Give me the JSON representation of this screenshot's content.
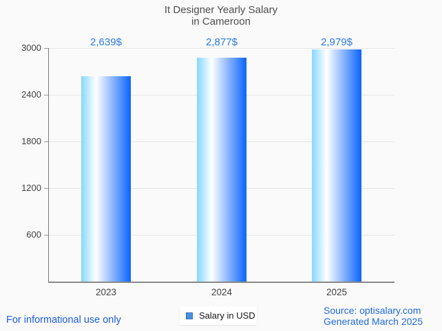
{
  "title": {
    "line1": "It Designer Yearly Salary",
    "line2": "in Cameroon"
  },
  "chart_data": {
    "type": "bar",
    "title": "It Designer Yearly Salary in Cameroon",
    "categories": [
      "2023",
      "2024",
      "2025"
    ],
    "series": [
      {
        "name": "Salary in USD",
        "values": [
          2639,
          2877,
          2979
        ]
      }
    ],
    "value_labels": [
      "2,639$",
      "2,877$",
      "2,979$"
    ],
    "xlabel": "",
    "ylabel": "",
    "ylim": [
      0,
      3000
    ],
    "yticks": [
      600,
      1200,
      1800,
      2400,
      3000
    ],
    "grid": "horizontal",
    "legend_position": "bottom-center",
    "bar_gradient": [
      "#85D7FF",
      "#FFFFFF",
      "#0A64FB"
    ],
    "bar_gradient_white_stop_pct": 30
  },
  "legend": {
    "label": "Salary in USD",
    "swatch_fill": "#4D90E2",
    "swatch_border": "#2D6FC2"
  },
  "footer": {
    "disclaimer": "For informational use only",
    "source_line1": "Source: optisalary.com",
    "source_line2": "Generated March 2025"
  },
  "colors": {
    "background": "#FAFAFA",
    "title_text": "#4E4E4E",
    "axis_text": "#3F3F3F",
    "value_label_blue": "#2B79E8",
    "footer_blue": "#1B5BE4",
    "source_blue": "#2068E0",
    "gridline": "#E6E6E6",
    "y_axis_line": "#7A7A7A",
    "x_axis_line": "#8A8A8A"
  }
}
